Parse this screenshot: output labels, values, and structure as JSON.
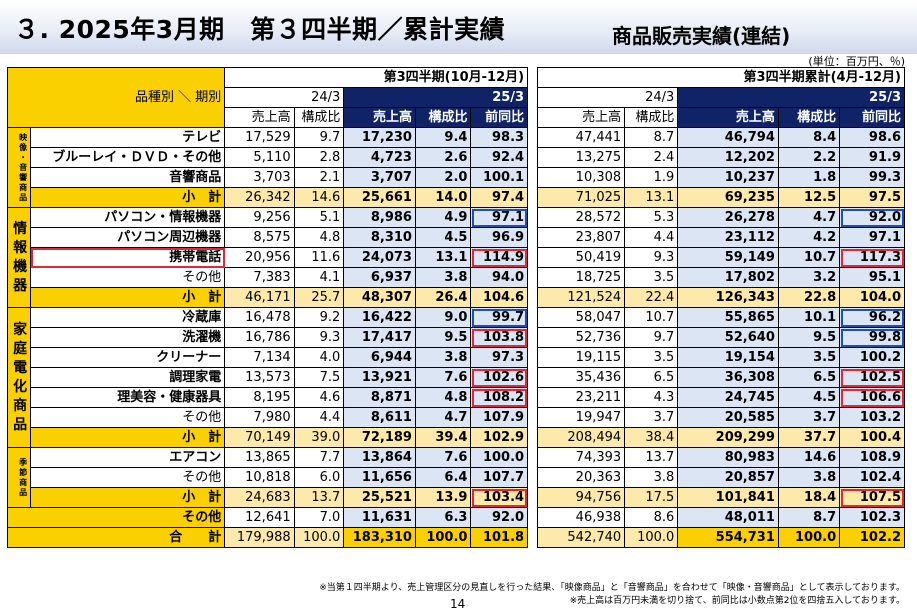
{
  "title": "３. 2025年3月期　第３四半期／累計実績",
  "subtitle": "商品販売実績(連結)",
  "unit": "(単位：百万円、％)",
  "header": {
    "corner": "品種別 ＼ 期別",
    "q3": "第3四半期(10月-12月)",
    "cum": "第3四半期累計(4月-12月)",
    "prev": "24/3",
    "curr": "25/3",
    "sales": "売上高",
    "ratio": "構成比",
    "yoy": "前同比"
  },
  "categories": {
    "av": "映像・音響商品",
    "info": "情報機器",
    "home": "家庭電化商品",
    "season": "季節商品"
  },
  "rows": [
    {
      "label": "テレビ",
      "v": [
        "17,529",
        "9.7",
        "17,230",
        "9.4",
        "98.3",
        "47,441",
        "8.7",
        "46,794",
        "8.4",
        "98.6"
      ]
    },
    {
      "label": "ブルーレイ・ＤＶＤ・その他",
      "v": [
        "5,110",
        "2.8",
        "4,723",
        "2.6",
        "92.4",
        "13,275",
        "2.4",
        "12,202",
        "2.2",
        "91.9"
      ]
    },
    {
      "label": "音響商品",
      "v": [
        "3,703",
        "2.1",
        "3,707",
        "2.0",
        "100.1",
        "10,308",
        "1.9",
        "10,237",
        "1.8",
        "99.3"
      ]
    },
    {
      "label": "小　計",
      "v": [
        "26,342",
        "14.6",
        "25,661",
        "14.0",
        "97.4",
        "71,025",
        "13.1",
        "69,235",
        "12.5",
        "97.5"
      ]
    },
    {
      "label": "パソコン・情報機器",
      "v": [
        "9,256",
        "5.1",
        "8,986",
        "4.9",
        "97.1",
        "28,572",
        "5.3",
        "26,278",
        "4.7",
        "92.0"
      ]
    },
    {
      "label": "パソコン周辺機器",
      "v": [
        "8,575",
        "4.8",
        "8,310",
        "4.5",
        "96.9",
        "23,807",
        "4.4",
        "23,112",
        "4.2",
        "97.1"
      ]
    },
    {
      "label": "携帯電話",
      "v": [
        "20,956",
        "11.6",
        "24,073",
        "13.1",
        "114.9",
        "50,419",
        "9.3",
        "59,149",
        "10.7",
        "117.3"
      ]
    },
    {
      "label": "その他",
      "v": [
        "7,383",
        "4.1",
        "6,937",
        "3.8",
        "94.0",
        "18,725",
        "3.5",
        "17,802",
        "3.2",
        "95.1"
      ]
    },
    {
      "label": "小　計",
      "v": [
        "46,171",
        "25.7",
        "48,307",
        "26.4",
        "104.6",
        "121,524",
        "22.4",
        "126,343",
        "22.8",
        "104.0"
      ]
    },
    {
      "label": "冷蔵庫",
      "v": [
        "16,478",
        "9.2",
        "16,422",
        "9.0",
        "99.7",
        "58,047",
        "10.7",
        "55,865",
        "10.1",
        "96.2"
      ]
    },
    {
      "label": "洗濯機",
      "v": [
        "16,786",
        "9.3",
        "17,417",
        "9.5",
        "103.8",
        "52,736",
        "9.7",
        "52,640",
        "9.5",
        "99.8"
      ]
    },
    {
      "label": "クリーナー",
      "v": [
        "7,134",
        "4.0",
        "6,944",
        "3.8",
        "97.3",
        "19,115",
        "3.5",
        "19,154",
        "3.5",
        "100.2"
      ]
    },
    {
      "label": "調理家電",
      "v": [
        "13,573",
        "7.5",
        "13,921",
        "7.6",
        "102.6",
        "35,436",
        "6.5",
        "36,308",
        "6.5",
        "102.5"
      ]
    },
    {
      "label": "理美容・健康器具",
      "v": [
        "8,195",
        "4.6",
        "8,871",
        "4.8",
        "108.2",
        "23,211",
        "4.3",
        "24,745",
        "4.5",
        "106.6"
      ]
    },
    {
      "label": "その他",
      "v": [
        "7,980",
        "4.4",
        "8,611",
        "4.7",
        "107.9",
        "19,947",
        "3.7",
        "20,585",
        "3.7",
        "103.2"
      ]
    },
    {
      "label": "小　計",
      "v": [
        "70,149",
        "39.0",
        "72,189",
        "39.4",
        "102.9",
        "208,494",
        "38.4",
        "209,299",
        "37.7",
        "100.4"
      ]
    },
    {
      "label": "エアコン",
      "v": [
        "13,865",
        "7.7",
        "13,864",
        "7.6",
        "100.0",
        "74,393",
        "13.7",
        "80,983",
        "14.6",
        "108.9"
      ]
    },
    {
      "label": "その他",
      "v": [
        "10,818",
        "6.0",
        "11,656",
        "6.4",
        "107.7",
        "20,363",
        "3.8",
        "20,857",
        "3.8",
        "102.4"
      ]
    },
    {
      "label": "小　計",
      "v": [
        "24,683",
        "13.7",
        "25,521",
        "13.9",
        "103.4",
        "94,756",
        "17.5",
        "101,841",
        "18.4",
        "107.5"
      ]
    },
    {
      "label": "その他",
      "v": [
        "12,641",
        "7.0",
        "11,631",
        "6.3",
        "92.0",
        "46,938",
        "8.6",
        "48,011",
        "8.7",
        "102.3"
      ]
    },
    {
      "label": "合　　計",
      "v": [
        "179,988",
        "100.0",
        "183,310",
        "100.0",
        "101.8",
        "542,740",
        "100.0",
        "554,731",
        "100.0",
        "102.2"
      ]
    }
  ],
  "notes": [
    "※当第１四半期より、売上管理区分の見直しを行った結果、「映像商品」と「音響商品」を合わせて「映像・音響商品」として表示しております。",
    "※売上高は百万円未満を切り捨て、前同比は小数点第2位を四捨五入しております。"
  ],
  "page_number": "14",
  "colors": {
    "header_navy": "#0f2366",
    "category_yellow": "#fad000",
    "subtotal_light": "#fde9a9",
    "current_col_blue": "#dbe5f3",
    "box_blue": "#1f4fb0",
    "box_red": "#e0283a"
  }
}
